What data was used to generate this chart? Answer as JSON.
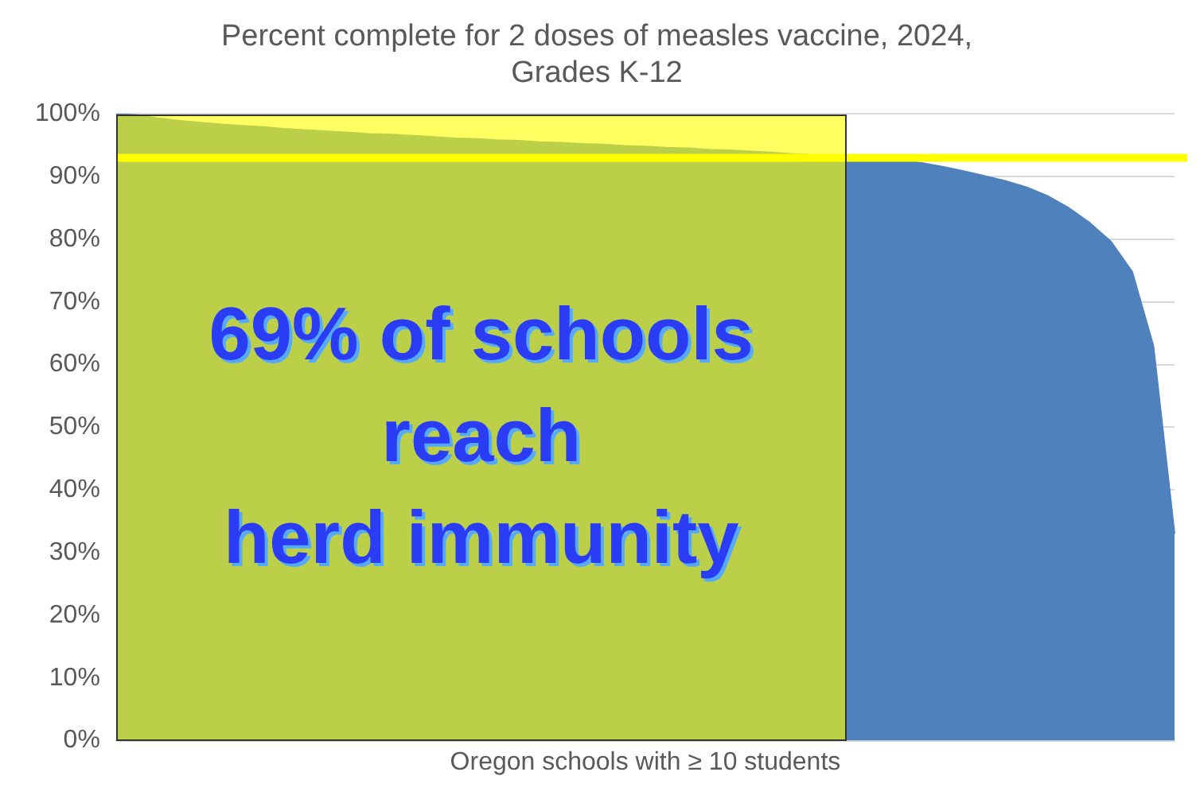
{
  "chart_data": {
    "type": "area",
    "title": "Percent complete for 2 doses of measles vaccine, 2024,\nGrades K-12",
    "xlabel": "Oregon schools with ≥ 10 students",
    "categories": [
      null,
      null,
      null,
      null,
      null,
      null,
      null,
      null,
      null,
      null,
      null,
      null,
      null,
      null,
      null,
      null,
      null,
      null,
      null,
      null,
      null,
      null,
      null,
      null,
      null,
      null,
      null,
      null,
      null,
      null,
      null,
      null,
      null,
      null,
      null,
      null,
      null,
      null,
      null,
      null,
      null,
      null,
      null,
      null,
      null,
      null,
      null,
      null,
      null,
      null,
      null
    ],
    "series": [
      {
        "color": "#4f81bd",
        "values": [
          100,
          99.8,
          99.3,
          98.9,
          98.6,
          98.3,
          98.1,
          97.9,
          97.6,
          97.4,
          97.2,
          97.0,
          96.8,
          96.7,
          96.5,
          96.3,
          96.1,
          96.0,
          95.8,
          95.7,
          95.5,
          95.4,
          95.2,
          95.1,
          94.9,
          94.8,
          94.6,
          94.5,
          94.3,
          94.2,
          94.0,
          93.8,
          93.6,
          93.4,
          93.1,
          92.9,
          92.8,
          92.6,
          92.2,
          91.6,
          90.9,
          90.1,
          89.3,
          88.3,
          86.9,
          85.0,
          82.6,
          79.6,
          74.8,
          63,
          33
        ]
      }
    ],
    "ylim": [
      0,
      100
    ],
    "yticks": [
      {
        "value": 0,
        "label": "0%"
      },
      {
        "value": 10,
        "label": "10%"
      },
      {
        "value": 20,
        "label": "20%"
      },
      {
        "value": 30,
        "label": "30%"
      },
      {
        "value": 40,
        "label": "40%"
      },
      {
        "value": 50,
        "label": "50%"
      },
      {
        "value": 60,
        "label": "60%"
      },
      {
        "value": 70,
        "label": "70%"
      },
      {
        "value": 80,
        "label": "80%"
      },
      {
        "value": 90,
        "label": "90%"
      },
      {
        "value": 100,
        "label": "100%"
      }
    ],
    "tick_labels": "y",
    "grid": "y",
    "legend": false,
    "ref_lines": [
      {
        "axis": "y",
        "value": 93,
        "color": "#ffff00"
      }
    ],
    "annotations": [
      "69% of schools\nreach\nherd immunity"
    ]
  }
}
